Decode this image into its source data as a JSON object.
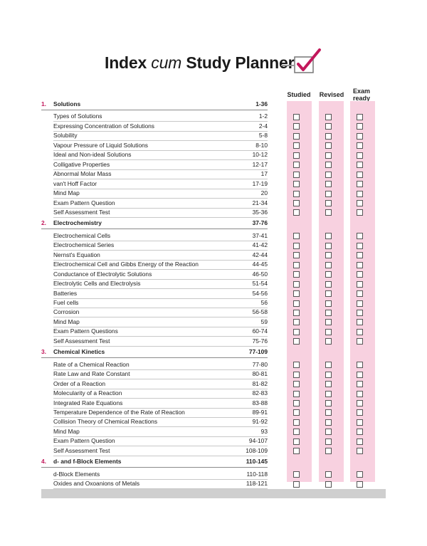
{
  "title": {
    "pre": "Index ",
    "cum": "cum",
    "post": " Study Planner"
  },
  "columns": {
    "studied": "Studied",
    "revised": "Revised",
    "exam_line1": "Exam",
    "exam_line2": "ready"
  },
  "chapters": [
    {
      "number": "1.",
      "title": "Solutions",
      "pages": "1-36",
      "topics": [
        {
          "label": "Types of Solutions",
          "pages": "1-2"
        },
        {
          "label": "Expressing Concentration of Solutions",
          "pages": "2-4"
        },
        {
          "label": "Solubility",
          "pages": "5-8"
        },
        {
          "label": "Vapour Pressure of Liquid Solutions",
          "pages": "8-10"
        },
        {
          "label": "Ideal and Non-ideal Solutions",
          "pages": "10-12"
        },
        {
          "label": "Colligative Properties",
          "pages": "12-17"
        },
        {
          "label": "Abnormal Molar Mass",
          "pages": "17"
        },
        {
          "label": "van't Hoff Factor",
          "pages": "17-19"
        },
        {
          "label": "Mind Map",
          "pages": "20"
        },
        {
          "label": "Exam Pattern Question",
          "pages": "21-34"
        },
        {
          "label": "Self Assessment Test",
          "pages": "35-36"
        }
      ]
    },
    {
      "number": "2.",
      "title": "Electrochemistry",
      "pages": "37-76",
      "topics": [
        {
          "label": "Electrochemical Cells",
          "pages": "37-41"
        },
        {
          "label": "Electrochemical Series",
          "pages": "41-42"
        },
        {
          "label": "Nernst's Equation",
          "pages": "42-44"
        },
        {
          "label": "Electrochemical Cell and Gibbs Energy of the Reaction",
          "pages": "44-45"
        },
        {
          "label": "Conductance of Electrolytic Solutions",
          "pages": "46-50"
        },
        {
          "label": "Electrolytic Cells and Electrolysis",
          "pages": "51-54"
        },
        {
          "label": "Batteries",
          "pages": "54-56"
        },
        {
          "label": "Fuel cells",
          "pages": "56"
        },
        {
          "label": "Corrosion",
          "pages": "56-58"
        },
        {
          "label": "Mind Map",
          "pages": "59"
        },
        {
          "label": "Exam Pattern Questions",
          "pages": "60-74"
        },
        {
          "label": "Self Assessment Test",
          "pages": "75-76"
        }
      ]
    },
    {
      "number": "3.",
      "title": "Chemical Kinetics",
      "pages": "77-109",
      "topics": [
        {
          "label": "Rate of a Chemical Reaction",
          "pages": "77-80"
        },
        {
          "label": "Rate Law and Rate Constant",
          "pages": "80-81"
        },
        {
          "label": "Order of a Reaction",
          "pages": "81-82"
        },
        {
          "label": "Molecularity of a Reaction",
          "pages": "82-83"
        },
        {
          "label": "Integrated Rate Equations",
          "pages": "83-88"
        },
        {
          "label": "Temperature Dependence of the Rate of Reaction",
          "pages": "89-91"
        },
        {
          "label": "Collision Theory of Chemical Reactions",
          "pages": "91-92"
        },
        {
          "label": "Mind Map",
          "pages": "93"
        },
        {
          "label": "Exam Pattern Question",
          "pages": "94-107"
        },
        {
          "label": "Self Assessment Test",
          "pages": "108-109"
        }
      ]
    },
    {
      "number": "4.",
      "title": "d- and f-Block Elements",
      "pages": "110-145",
      "topics": [
        {
          "label": "d-Block Elements",
          "pages": "110-118"
        },
        {
          "label": "Oxides and Oxoanions of Metals",
          "pages": "118-121"
        }
      ]
    }
  ],
  "colors": {
    "accent": "#c2185b",
    "stripe": "#f8d1e0",
    "footer": "#cfcfcf"
  }
}
